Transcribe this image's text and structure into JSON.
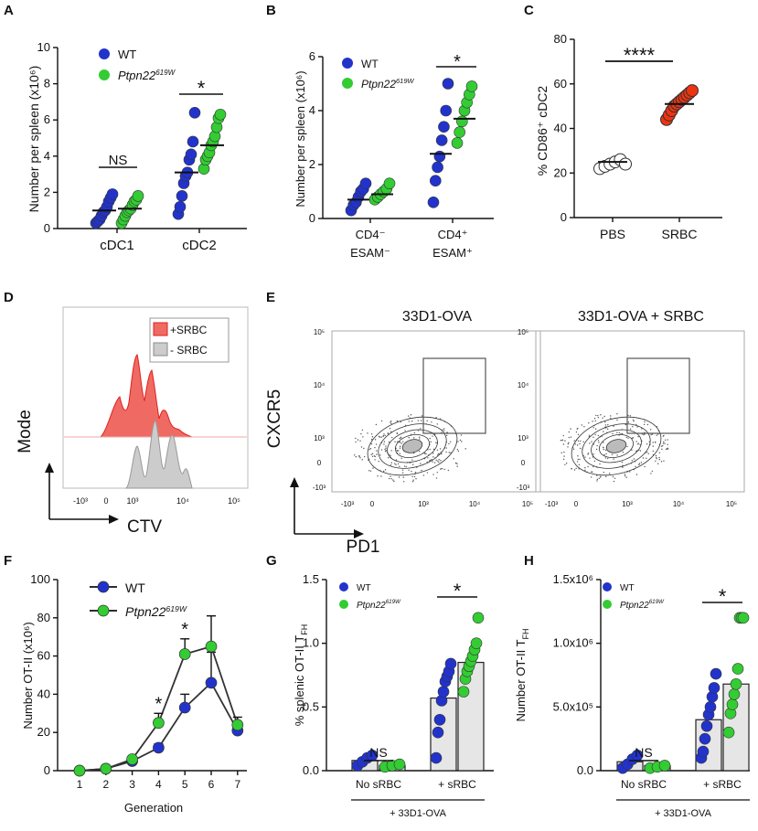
{
  "colors": {
    "wt": "#2233cc",
    "ptpn": "#33cc33",
    "pbs_fill": "#ffffff",
    "srbc": "#ee3311",
    "bar": "#e6e6e6",
    "hist_red": "#f06a64",
    "hist_red_line": "#e0201a",
    "hist_grey": "#cccccc"
  },
  "chart_data": [
    {
      "panel": "A",
      "type": "scatter",
      "ylabel": "Number per spleen (x10⁶)",
      "ylim": [
        0,
        10
      ],
      "yticks": [
        "0",
        "2",
        "4",
        "6",
        "8",
        "10"
      ],
      "categories": [
        "cDC1",
        "cDC2"
      ],
      "legend": [
        {
          "name": "WT",
          "italic": false
        },
        {
          "name": "Ptpn22",
          "sup": "619W",
          "italic": true
        }
      ],
      "series": [
        {
          "name": "WT",
          "values": [
            [
              0.3,
              0.4,
              0.5,
              0.7,
              0.9,
              1.0,
              1.2,
              1.5,
              1.7,
              1.9
            ],
            [
              0.8,
              1.2,
              1.8,
              2.5,
              2.9,
              3.1,
              3.8,
              4.1,
              4.8,
              6.4
            ]
          ]
        },
        {
          "name": "Ptpn22 619W",
          "values": [
            [
              0.3,
              0.5,
              0.7,
              0.9,
              1.0,
              1.1,
              1.3,
              1.5,
              1.6,
              1.8
            ],
            [
              3.3,
              3.8,
              4.0,
              4.2,
              4.6,
              4.8,
              5.1,
              5.6,
              6.1,
              6.3
            ]
          ]
        }
      ],
      "means": [
        [
          1.0,
          1.1
        ],
        [
          3.1,
          4.6
        ]
      ],
      "annotations": [
        {
          "text": "NS",
          "group": 0
        },
        {
          "text": "*",
          "group": 1
        }
      ]
    },
    {
      "panel": "B",
      "type": "scatter",
      "ylabel": "Number per spleen (x10⁶)",
      "ylim": [
        0,
        6
      ],
      "yticks": [
        "0",
        "2",
        "4",
        "6"
      ],
      "categories": [
        [
          "CD4⁻",
          "ESAM⁻"
        ],
        [
          "CD4⁺",
          "ESAM⁺"
        ]
      ],
      "legend": [
        {
          "name": "WT",
          "italic": false
        },
        {
          "name": "Ptpn22",
          "sup": "619W",
          "italic": true
        }
      ],
      "series": [
        {
          "name": "WT",
          "values": [
            [
              0.3,
              0.5,
              0.6,
              0.8,
              1.0,
              1.1,
              1.3
            ],
            [
              0.6,
              1.4,
              1.9,
              2.3,
              2.9,
              3.4,
              4.0,
              5.0
            ]
          ]
        },
        {
          "name": "Ptpn22 619W",
          "values": [
            [
              0.7,
              0.8,
              0.9,
              1.0,
              1.1,
              1.3
            ],
            [
              2.8,
              3.2,
              3.6,
              4.0,
              4.3,
              4.6,
              4.9
            ]
          ]
        }
      ],
      "means": [
        [
          0.7,
          0.9
        ],
        [
          2.4,
          3.7
        ]
      ],
      "annotations": [
        {
          "text": "*",
          "group": 1
        }
      ]
    },
    {
      "panel": "C",
      "type": "scatter",
      "ylabel": "% CD86⁺ cDC2",
      "ylim": [
        0,
        80
      ],
      "yticks": [
        "0",
        "20",
        "40",
        "60",
        "80"
      ],
      "categories": [
        "PBS",
        "SRBC"
      ],
      "series": [
        {
          "name": "PBS",
          "values": [
            22,
            23,
            24,
            25,
            26,
            24
          ]
        },
        {
          "name": "SRBC",
          "values": [
            44,
            46,
            48,
            50,
            51,
            52,
            53,
            54,
            55,
            56,
            57
          ]
        }
      ],
      "means": [
        25,
        51
      ],
      "annotations": [
        {
          "text": "****"
        }
      ]
    },
    {
      "panel": "D",
      "type": "histogram",
      "ylabel": "Mode",
      "xlabel": "CTV",
      "xticks": [
        "-10³",
        "0",
        "10³",
        "10⁴",
        "10⁵"
      ],
      "legend": [
        "+SRBC",
        "- SRBC"
      ]
    },
    {
      "panel": "E",
      "type": "flow-contour",
      "plots": [
        "33D1-OVA",
        "33D1-OVA + SRBC"
      ],
      "ylabel": "CXCR5",
      "xlabel": "PD1",
      "axis_ticks": [
        "-10³",
        "0",
        "10³",
        "10⁴",
        "10⁵"
      ]
    },
    {
      "panel": "F",
      "type": "line",
      "ylabel": "Number OT-II (x10⁶)",
      "xlabel": "Generation",
      "x": [
        1,
        2,
        3,
        4,
        5,
        6,
        7
      ],
      "ylim": [
        0,
        100
      ],
      "yticks": [
        "0",
        "20",
        "40",
        "60",
        "80",
        "100"
      ],
      "legend": [
        {
          "name": "WT",
          "italic": false
        },
        {
          "name": "Ptpn22",
          "sup": "619W",
          "italic": true
        }
      ],
      "series": [
        {
          "name": "WT",
          "values": [
            0,
            1,
            5,
            12,
            33,
            46,
            21
          ],
          "errors": [
            0,
            1,
            1,
            2,
            7,
            16,
            4
          ]
        },
        {
          "name": "Ptpn22 619W",
          "values": [
            0,
            1,
            6,
            25,
            61,
            65,
            24
          ],
          "errors": [
            0,
            1,
            1,
            5,
            8,
            16,
            4
          ]
        }
      ],
      "annotations": [
        {
          "text": "*",
          "x": 4
        },
        {
          "text": "*",
          "x": 5
        }
      ]
    },
    {
      "panel": "G",
      "type": "bar-scatter",
      "ylabel": "% splenic OT-II T",
      "ylabel_sub": "FH",
      "ylim": [
        0,
        1.5
      ],
      "yticks": [
        "0.0",
        "0.5",
        "1.0",
        "1.5"
      ],
      "categories": [
        "No sRBC",
        "+ sRBC"
      ],
      "bracket_label": "+ 33D1-OVA",
      "legend": [
        {
          "name": "WT",
          "italic": false
        },
        {
          "name": "Ptpn22",
          "sup": "619W",
          "italic": true
        }
      ],
      "bars": [
        [
          0.08,
          0.04
        ],
        [
          0.57,
          0.85
        ]
      ],
      "series": [
        {
          "name": "WT",
          "values": [
            [
              0.04,
              0.07,
              0.1,
              0.12
            ],
            [
              0.1,
              0.3,
              0.4,
              0.55,
              0.62,
              0.7,
              0.74,
              0.78,
              0.84
            ]
          ]
        },
        {
          "name": "Ptpn22 619W",
          "values": [
            [
              0.03,
              0.04,
              0.05
            ],
            [
              0.62,
              0.72,
              0.78,
              0.82,
              0.86,
              0.9,
              0.95,
              1.0,
              1.2
            ]
          ]
        }
      ],
      "annotations": [
        {
          "text": "NS",
          "group": 0
        },
        {
          "text": "*",
          "group": 1
        }
      ]
    },
    {
      "panel": "H",
      "type": "bar-scatter",
      "ylabel": "Number OT-II T",
      "ylabel_sub": "FH",
      "ylim": [
        0,
        1500000
      ],
      "yticks": [
        "0.0",
        "5.0x10⁵",
        "1.0x10⁶",
        "1.5x10⁶"
      ],
      "categories": [
        "No sRBC",
        "+ sRBC"
      ],
      "bracket_label": "+ 33D1-OVA",
      "legend": [
        {
          "name": "WT",
          "italic": false
        },
        {
          "name": "Ptpn22",
          "sup": "619W",
          "italic": true
        }
      ],
      "bars": [
        [
          70000,
          40000
        ],
        [
          400000,
          680000
        ]
      ],
      "series": [
        {
          "name": "WT",
          "values": [
            [
              20000,
              50000,
              90000,
              120000
            ],
            [
              100000,
              150000,
              250000,
              350000,
              440000,
              500000,
              580000,
              650000,
              760000
            ]
          ]
        },
        {
          "name": "Ptpn22 619W",
          "values": [
            [
              20000,
              30000,
              40000
            ],
            [
              300000,
              450000,
              520000,
              600000,
              680000,
              800000,
              1200000,
              1200000,
              1200000
            ]
          ]
        }
      ],
      "annotations": [
        {
          "text": "NS",
          "group": 0
        },
        {
          "text": "*",
          "group": 1
        }
      ]
    }
  ]
}
